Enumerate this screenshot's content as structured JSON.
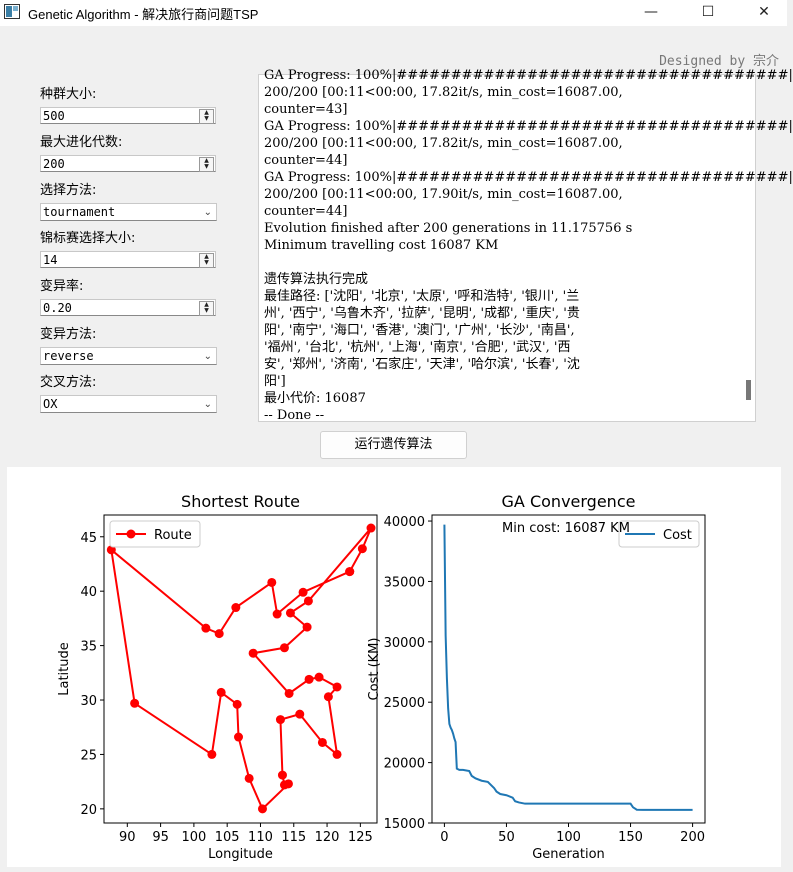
{
  "window": {
    "title": "Genetic Algorithm - 解决旅行商问题TSP",
    "controls": {
      "minimize": "—",
      "maximize": "☐",
      "close": "✕"
    }
  },
  "designer": "Designed by 宗介",
  "params": {
    "population_label": "种群大小:",
    "population_value": "500",
    "max_gen_label": "最大进化代数:",
    "max_gen_value": "200",
    "selection_label": "选择方法:",
    "selection_value": "tournament",
    "tournament_label": "锦标赛选择大小:",
    "tournament_value": "14",
    "mutation_rate_label": "变异率:",
    "mutation_rate_value": "0.20",
    "mutation_method_label": "变异方法:",
    "mutation_method_value": "reverse",
    "crossover_label": "交叉方法:",
    "crossover_value": "OX"
  },
  "console_lines": [
    "GA Progress: 100%|####################################|",
    "200/200 [00:11<00:00, 17.82it/s, min_cost=16087.00,",
    "counter=43]",
    "GA Progress: 100%|####################################|",
    "200/200 [00:11<00:00, 17.82it/s, min_cost=16087.00,",
    "counter=44]",
    "GA Progress: 100%|####################################|",
    "200/200 [00:11<00:00, 17.90it/s, min_cost=16087.00,",
    "counter=44]",
    "Evolution finished after 200 generations in 11.175756 s",
    "Minimum travelling cost 16087 KM",
    "",
    "遗传算法执行完成",
    "最佳路径: ['沈阳', '北京', '太原', '呼和浩特', '银川', '兰",
    "州', '西宁', '乌鲁木齐', '拉萨', '昆明', '成都', '重庆', '贵",
    "阳', '南宁', '海口', '香港', '澳门', '广州', '长沙', '南昌',",
    "'福州', '台北', '杭州', '上海', '南京', '合肥', '武汉', '西",
    "安', '郑州', '济南', '石家庄', '天津', '哈尔滨', '长春', '沈",
    "阳']",
    "最小代价: 16087",
    "-- Done --"
  ],
  "run_button_label": "运行遗传算法",
  "colors": {
    "route": "#ff0000",
    "cost": "#1f77b4"
  },
  "chart_data": [
    {
      "type": "line",
      "title": "Shortest Route",
      "xlabel": "Longitude",
      "ylabel": "Latitude",
      "xlim": [
        86.5,
        127.5
      ],
      "ylim": [
        18.7,
        47.0
      ],
      "xticks": [
        90,
        95,
        100,
        105,
        110,
        115,
        120,
        125
      ],
      "yticks": [
        20,
        25,
        30,
        35,
        40,
        45
      ],
      "legend": {
        "position": "top-left",
        "entries": [
          "Route"
        ]
      },
      "series": [
        {
          "name": "Route",
          "points": [
            [
              123.4,
              41.8
            ],
            [
              116.4,
              39.9
            ],
            [
              112.5,
              37.9
            ],
            [
              111.7,
              40.8
            ],
            [
              106.3,
              38.5
            ],
            [
              103.8,
              36.1
            ],
            [
              101.8,
              36.6
            ],
            [
              87.6,
              43.8
            ],
            [
              91.1,
              29.7
            ],
            [
              102.7,
              25.0
            ],
            [
              104.1,
              30.7
            ],
            [
              106.5,
              29.6
            ],
            [
              106.7,
              26.6
            ],
            [
              108.3,
              22.8
            ],
            [
              110.3,
              20.0
            ],
            [
              114.2,
              22.3
            ],
            [
              113.6,
              22.2
            ],
            [
              113.3,
              23.1
            ],
            [
              113.0,
              28.2
            ],
            [
              115.9,
              28.7
            ],
            [
              119.3,
              26.1
            ],
            [
              121.5,
              25.0
            ],
            [
              120.2,
              30.3
            ],
            [
              121.5,
              31.2
            ],
            [
              118.8,
              32.1
            ],
            [
              117.3,
              31.9
            ],
            [
              114.3,
              30.6
            ],
            [
              108.9,
              34.3
            ],
            [
              113.6,
              34.8
            ],
            [
              117.0,
              36.7
            ],
            [
              114.5,
              38.0
            ],
            [
              117.2,
              39.1
            ],
            [
              126.6,
              45.8
            ],
            [
              125.3,
              43.9
            ],
            [
              123.4,
              41.8
            ]
          ]
        }
      ]
    },
    {
      "type": "line",
      "title": "GA Convergence",
      "xlabel": "Generation",
      "ylabel": "Cost (KM)",
      "xlim": [
        -10,
        210
      ],
      "ylim": [
        15000,
        40500
      ],
      "xticks": [
        0,
        50,
        100,
        150,
        200
      ],
      "yticks": [
        15000,
        20000,
        25000,
        30000,
        35000,
        40000
      ],
      "legend": {
        "position": "top-right",
        "entries": [
          "Cost"
        ]
      },
      "annotation": "Min cost: 16087 KM",
      "series": [
        {
          "name": "Cost",
          "x": [
            0,
            1,
            2,
            3,
            4,
            5,
            6,
            7,
            8,
            9,
            10,
            12,
            15,
            20,
            22,
            25,
            30,
            35,
            40,
            42,
            45,
            50,
            55,
            57,
            60,
            65,
            70,
            80,
            100,
            120,
            150,
            152,
            155,
            160,
            180,
            200
          ],
          "y": [
            39700,
            30500,
            27000,
            24500,
            23200,
            22900,
            22700,
            22400,
            22000,
            21700,
            19500,
            19400,
            19400,
            19300,
            18900,
            18700,
            18500,
            18400,
            17900,
            17600,
            17400,
            17300,
            17100,
            16800,
            16700,
            16600,
            16600,
            16600,
            16600,
            16600,
            16600,
            16300,
            16100,
            16087,
            16087,
            16087
          ]
        }
      ]
    }
  ]
}
